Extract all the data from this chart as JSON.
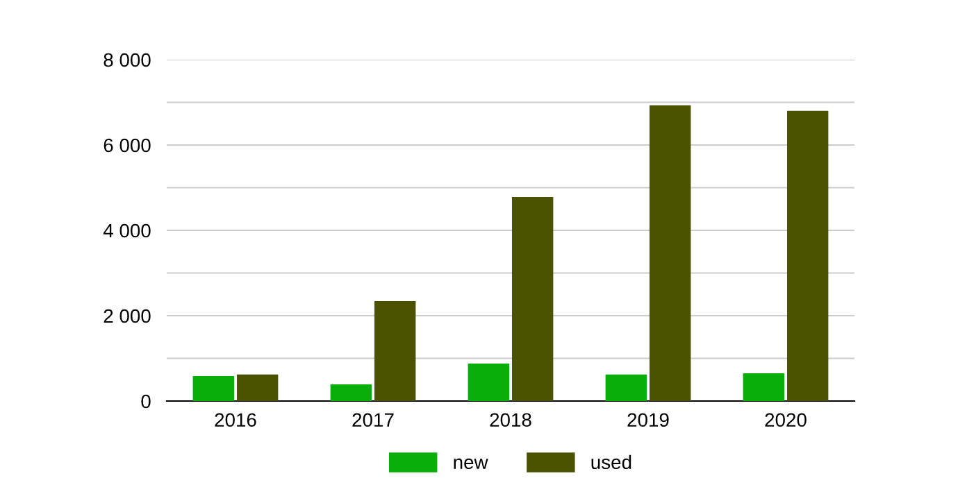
{
  "chart_data": {
    "type": "bar",
    "categories": [
      "2016",
      "2017",
      "2018",
      "2019",
      "2020"
    ],
    "series": [
      {
        "name": "new",
        "color": "#0aae0a",
        "values": [
          585,
          390,
          880,
          620,
          650
        ]
      },
      {
        "name": "used",
        "color": "#4b5300",
        "values": [
          620,
          2340,
          4780,
          6930,
          6800
        ]
      }
    ],
    "ylim": [
      0,
      8000
    ],
    "yticks": [
      {
        "value": 0,
        "label": "0"
      },
      {
        "value": 1000,
        "label": null
      },
      {
        "value": 2000,
        "label": "2 000"
      },
      {
        "value": 3000,
        "label": null
      },
      {
        "value": 4000,
        "label": "4 000"
      },
      {
        "value": 5000,
        "label": null
      },
      {
        "value": 6000,
        "label": "6 000"
      },
      {
        "value": 7000,
        "label": null
      },
      {
        "value": 8000,
        "label": "8 000"
      }
    ],
    "grid": "y",
    "legend": "bottom"
  }
}
